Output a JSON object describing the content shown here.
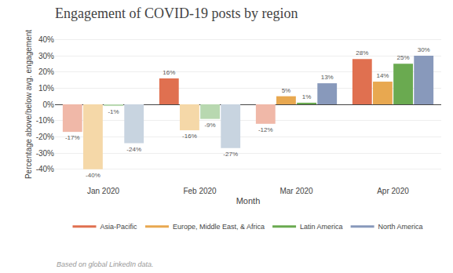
{
  "chart_data": {
    "type": "bar",
    "title": "Engagement of COVID-19 posts by region",
    "x_label": "Month",
    "y_label": "Percentage above/below avg. engagement",
    "annotations": [
      "Based on global LinkedIn data."
    ],
    "categories": [
      "Jan 2020",
      "Feb 2020",
      "Mar 2020",
      "Apr 2020"
    ],
    "series": [
      {
        "name": "Asia-Pacific",
        "color": "#e07050",
        "colors": [
          "#f0b8a8",
          "#e07050",
          "#f0b8a8",
          "#e07050"
        ],
        "values": [
          -17,
          16,
          -12,
          28
        ],
        "value_labels": [
          "-17%",
          "16%",
          "-12%",
          "28%"
        ]
      },
      {
        "name": "Europe, Middle East, & Africa",
        "color": "#e8a850",
        "colors": [
          "#f5d8a8",
          "#f5d8a8",
          "#e8a850",
          "#e8a850"
        ],
        "values": [
          -40,
          -16,
          5,
          14
        ],
        "value_labels": [
          "-40%",
          "-16%",
          "5%",
          "14%"
        ]
      },
      {
        "name": "Latin America",
        "color": "#6aaa50",
        "colors": [
          "#b8d8b0",
          "#b8d8b0",
          "#6aaa50",
          "#6aaa50"
        ],
        "values": [
          -1,
          -9,
          1,
          25
        ],
        "value_labels": [
          "-1%",
          "-9%",
          "1%",
          "25%"
        ]
      },
      {
        "name": "North America",
        "color": "#8899bb",
        "colors": [
          "#c8d4e0",
          "#c8d4e0",
          "#8899bb",
          "#8899bb"
        ],
        "values": [
          -24,
          -27,
          13,
          30
        ],
        "value_labels": [
          "-24%",
          "-27%",
          "13%",
          "30%"
        ]
      }
    ],
    "ylim": [
      -45,
      45
    ],
    "yticks": [
      {
        "value": -40,
        "label": "-40%"
      },
      {
        "value": -30,
        "label": "-30%"
      },
      {
        "value": -20,
        "label": "-20%"
      },
      {
        "value": -10,
        "label": "-10%"
      },
      {
        "value": 0,
        "label": "0%"
      },
      {
        "value": 10,
        "label": "10%"
      },
      {
        "value": 20,
        "label": "20%"
      },
      {
        "value": 30,
        "label": "30%"
      },
      {
        "value": 40,
        "label": "40%"
      }
    ],
    "grid": true,
    "legend": "bottom",
    "data_labels": true
  }
}
